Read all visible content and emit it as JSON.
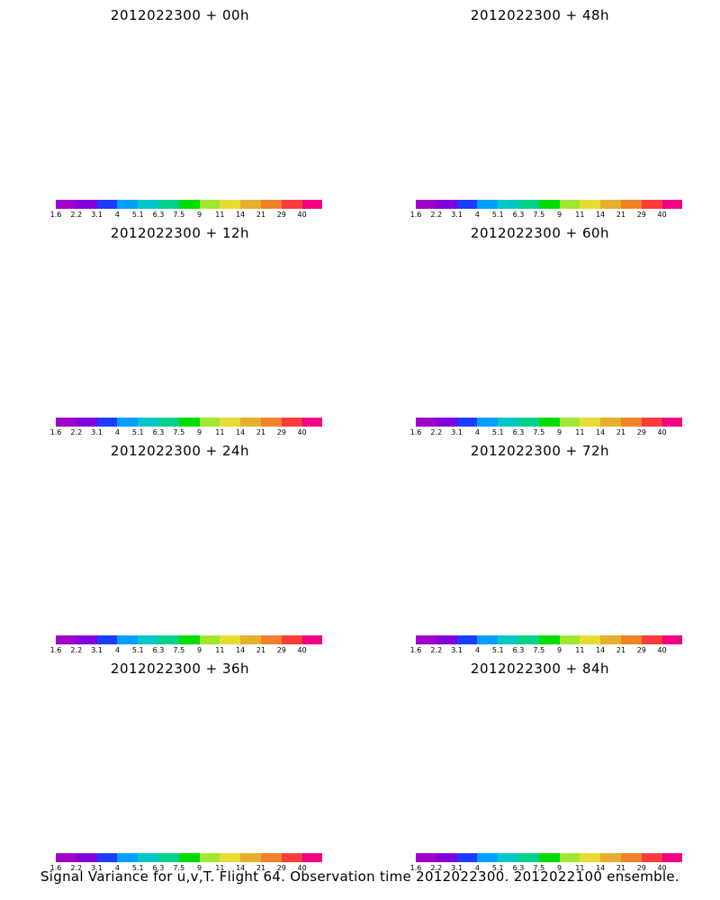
{
  "panels": [
    {
      "title": "2012022300  + 00h",
      "stage": 0
    },
    {
      "title": "2012022300  + 48h",
      "stage": 4
    },
    {
      "title": "2012022300  + 12h",
      "stage": 1
    },
    {
      "title": "2012022300  + 60h",
      "stage": 5
    },
    {
      "title": "2012022300  + 24h",
      "stage": 2
    },
    {
      "title": "2012022300  + 72h",
      "stage": 6
    },
    {
      "title": "2012022300  + 36h",
      "stage": 3
    },
    {
      "title": "2012022300  + 84h",
      "stage": 6
    }
  ],
  "colorbar": {
    "colors": [
      "#a000c8",
      "#8200dc",
      "#1e3cff",
      "#00a0ff",
      "#00c8c8",
      "#00d28c",
      "#00dc00",
      "#a0e632",
      "#e6dc32",
      "#e6af2d",
      "#f08228",
      "#fa3c3c",
      "#f00082"
    ],
    "labels": [
      "1.6",
      "2.2",
      "3.1",
      "4",
      "5.1",
      "6.3",
      "7.5",
      "9",
      "11",
      "14",
      "21",
      "29",
      "40"
    ]
  },
  "footer": "Signal Variance for u,v,T. Flight 64. Observation time 2012022300. 2012022100 ensemble."
}
